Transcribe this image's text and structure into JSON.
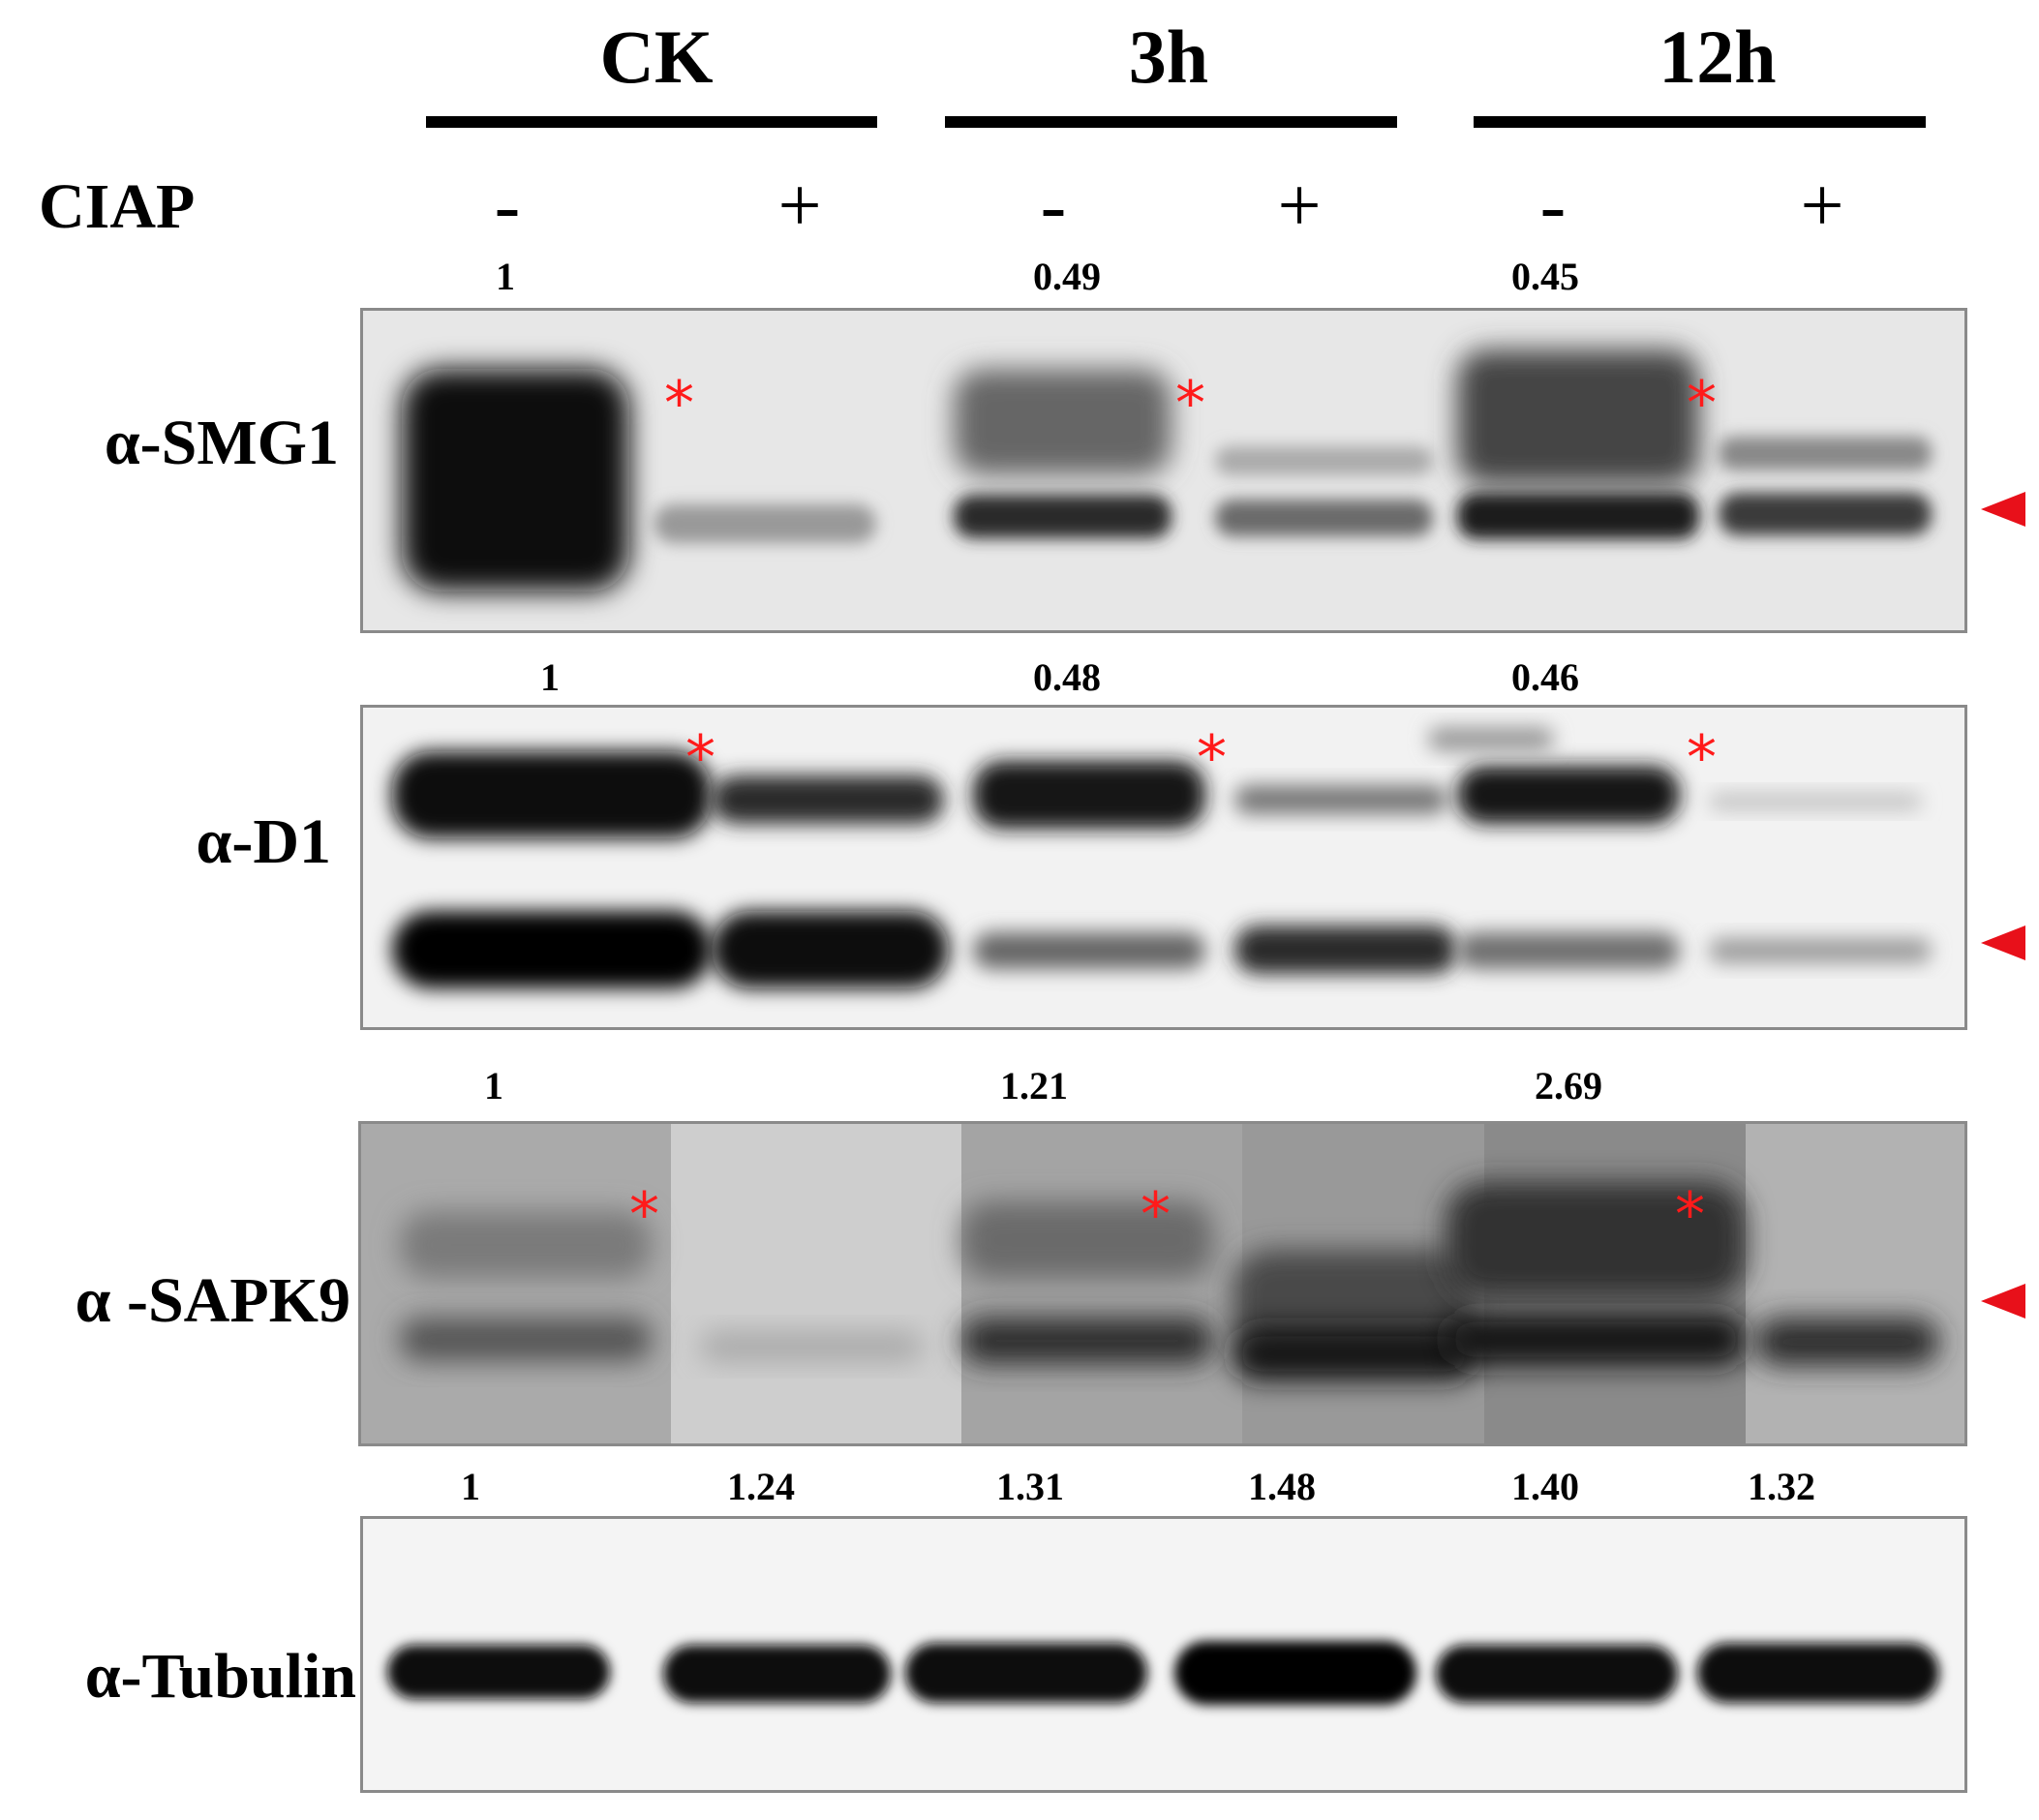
{
  "groups": [
    "CK",
    "3h",
    "12h"
  ],
  "ciap_label": "CIAP",
  "ciap_signs": [
    "-",
    "+",
    "-",
    "+",
    "-",
    "+"
  ],
  "panels": [
    {
      "label": "α-SMG1",
      "quant": [
        "1",
        "0.49",
        "0.45"
      ]
    },
    {
      "label": "α-D1",
      "quant": [
        "1",
        "0.48",
        "0.46"
      ]
    },
    {
      "label": "α -SAPK9",
      "quant": [
        "1",
        "1.21",
        "2.69"
      ]
    },
    {
      "label": "α-Tubulin",
      "quant": [
        "1",
        "1.24",
        "1.31",
        "1.48",
        "1.40",
        "1.32"
      ]
    }
  ],
  "star_symbol": "*",
  "colors": {
    "marker": "#ff1a1a",
    "arrow": "#e8101a",
    "frame": "#8a8a8a"
  }
}
